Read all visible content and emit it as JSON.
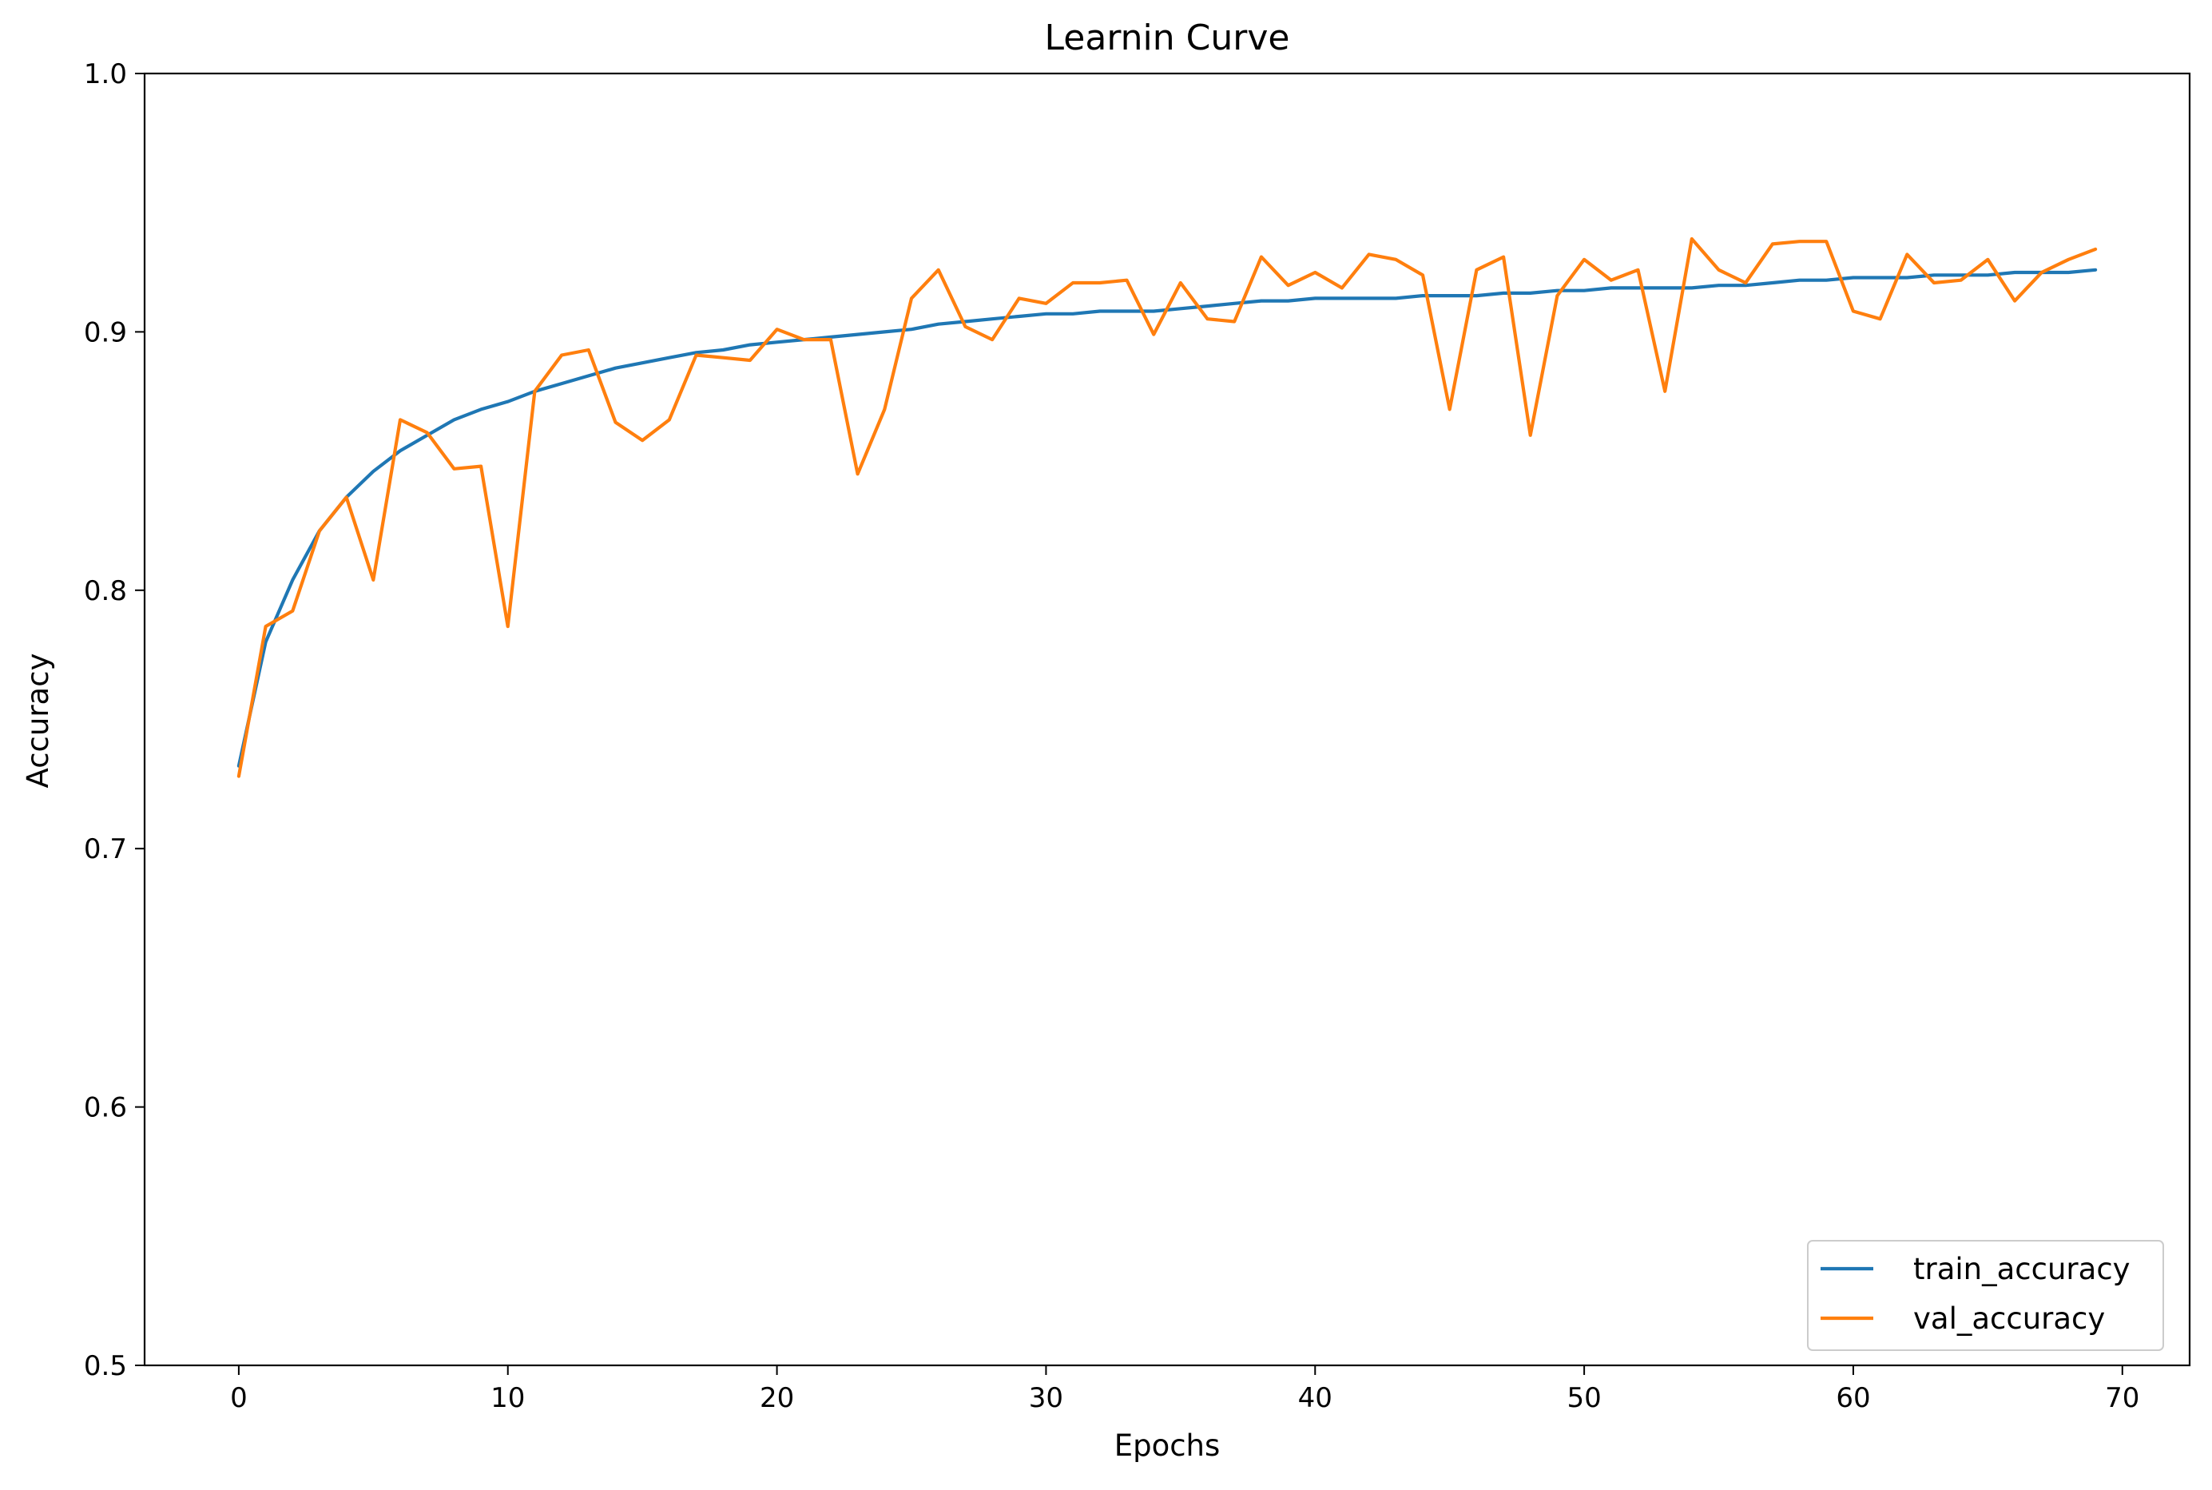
{
  "chart_data": {
    "type": "line",
    "title": "Learnin Curve",
    "xlabel": "Epochs",
    "ylabel": "Accuracy",
    "xlim": [
      -3.5,
      72.5
    ],
    "ylim": [
      0.5,
      1.0
    ],
    "xticks": [
      0,
      10,
      20,
      30,
      40,
      50,
      60,
      70
    ],
    "yticks": [
      0.5,
      0.6,
      0.7,
      0.8,
      0.9,
      1.0
    ],
    "ytick_labels": [
      "0.5",
      "0.6",
      "0.7",
      "0.8",
      "0.9",
      "1.0"
    ],
    "grid": false,
    "legend_position": "lower-right",
    "x": [
      0,
      1,
      2,
      3,
      4,
      5,
      6,
      7,
      8,
      9,
      10,
      11,
      12,
      13,
      14,
      15,
      16,
      17,
      18,
      19,
      20,
      21,
      22,
      23,
      24,
      25,
      26,
      27,
      28,
      29,
      30,
      31,
      32,
      33,
      34,
      35,
      36,
      37,
      38,
      39,
      40,
      41,
      42,
      43,
      44,
      45,
      46,
      47,
      48,
      49,
      50,
      51,
      52,
      53,
      54,
      55,
      56,
      57,
      58,
      59,
      60,
      61,
      62,
      63,
      64,
      65,
      66,
      67,
      68,
      69
    ],
    "series": [
      {
        "name": "train_accuracy",
        "color": "#1f77b4",
        "values": [
          0.732,
          0.78,
          0.804,
          0.823,
          0.836,
          0.846,
          0.854,
          0.86,
          0.866,
          0.87,
          0.873,
          0.877,
          0.88,
          0.883,
          0.886,
          0.888,
          0.89,
          0.892,
          0.893,
          0.895,
          0.896,
          0.897,
          0.898,
          0.899,
          0.9,
          0.901,
          0.903,
          0.904,
          0.905,
          0.906,
          0.907,
          0.907,
          0.908,
          0.908,
          0.908,
          0.909,
          0.91,
          0.911,
          0.912,
          0.912,
          0.913,
          0.913,
          0.913,
          0.913,
          0.914,
          0.914,
          0.914,
          0.915,
          0.915,
          0.916,
          0.916,
          0.917,
          0.917,
          0.917,
          0.917,
          0.918,
          0.918,
          0.919,
          0.92,
          0.92,
          0.921,
          0.921,
          0.921,
          0.922,
          0.922,
          0.922,
          0.923,
          0.923,
          0.923,
          0.924
        ]
      },
      {
        "name": "val_accuracy",
        "color": "#ff7f0e",
        "values": [
          0.728,
          0.786,
          0.792,
          0.823,
          0.836,
          0.804,
          0.866,
          0.861,
          0.847,
          0.848,
          0.786,
          0.877,
          0.891,
          0.893,
          0.865,
          0.858,
          0.866,
          0.891,
          0.89,
          0.889,
          0.901,
          0.897,
          0.897,
          0.845,
          0.87,
          0.913,
          0.924,
          0.902,
          0.897,
          0.913,
          0.911,
          0.919,
          0.919,
          0.92,
          0.899,
          0.919,
          0.905,
          0.904,
          0.929,
          0.918,
          0.923,
          0.917,
          0.93,
          0.928,
          0.922,
          0.87,
          0.924,
          0.929,
          0.86,
          0.914,
          0.928,
          0.92,
          0.924,
          0.877,
          0.936,
          0.924,
          0.919,
          0.934,
          0.935,
          0.935,
          0.908,
          0.905,
          0.93,
          0.919,
          0.92,
          0.928,
          0.912,
          0.923,
          0.928,
          0.932
        ]
      }
    ]
  }
}
